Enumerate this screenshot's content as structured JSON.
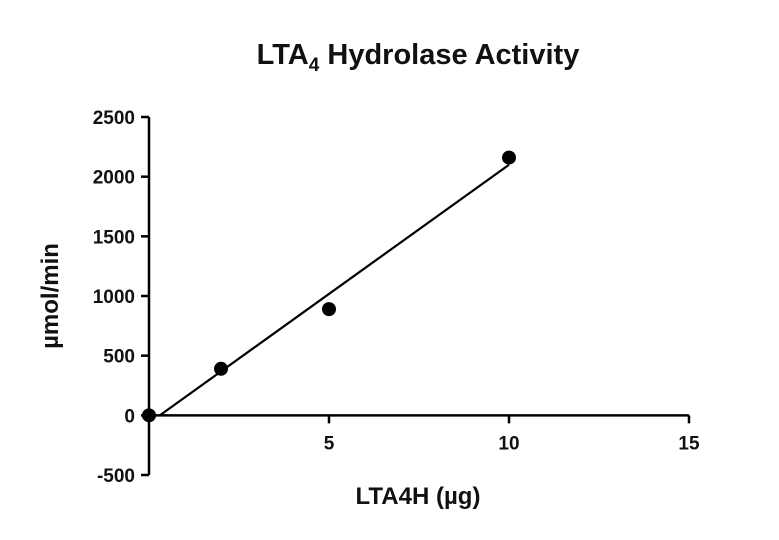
{
  "chart_data": {
    "type": "scatter",
    "title": "LTA",
    "title_subscript": "4",
    "title_rest": " Hydrolase Activity",
    "xlabel": "LTA4H (µg)",
    "ylabel": "µmol/min",
    "xlim": [
      0,
      15
    ],
    "ylim": [
      -500,
      2500
    ],
    "xticks": [
      5,
      10,
      15
    ],
    "xtick_labels": [
      "5",
      "10",
      "15"
    ],
    "yticks": [
      -500,
      0,
      500,
      1000,
      1500,
      2000,
      2500
    ],
    "ytick_labels": [
      "-500",
      "0",
      "500",
      "1000",
      "1500",
      "2000",
      "2500"
    ],
    "grid": false,
    "series": [
      {
        "x": [
          0,
          2,
          5,
          10
        ],
        "y": [
          0,
          390,
          890,
          2160
        ],
        "marker": "circle",
        "color": "#000000"
      }
    ],
    "fit_line": {
      "x": [
        0.3,
        10
      ],
      "y": [
        0,
        2100
      ],
      "color": "#000000"
    }
  }
}
